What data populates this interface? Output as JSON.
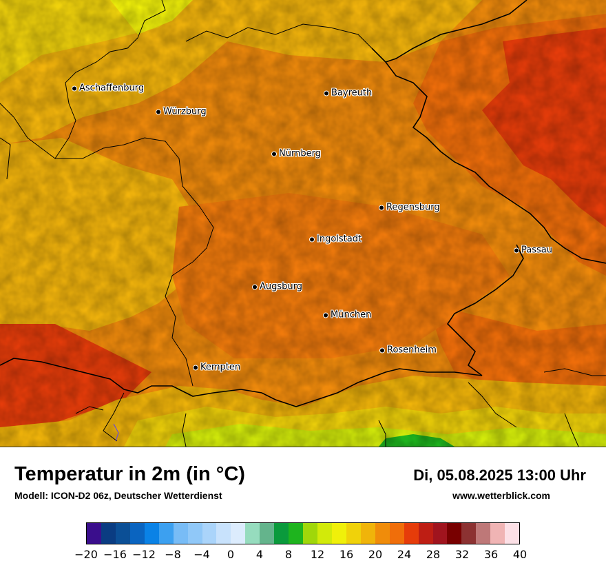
{
  "map": {
    "cities": [
      {
        "name": "Aschaffenburg"
      },
      {
        "name": "Würzburg"
      },
      {
        "name": "Bayreuth"
      },
      {
        "name": "Nürnberg"
      },
      {
        "name": "Regensburg"
      },
      {
        "name": "Ingolstadt"
      },
      {
        "name": "Passau"
      },
      {
        "name": "Augsburg"
      },
      {
        "name": "München"
      },
      {
        "name": "Rosenheim"
      },
      {
        "name": "Kempten"
      }
    ]
  },
  "header": {
    "title": "Temperatur in 2m (in °C)",
    "model": "Modell: ICON-D2 06z, Deutscher Wetterdienst",
    "datetime": "Di, 05.08.2025 13:00 Uhr",
    "site": "www.wetterblick.com"
  },
  "legend": {
    "colors": [
      "#3a0e8c",
      "#0a3c82",
      "#0b4f96",
      "#0a64c0",
      "#0a82e6",
      "#3ca0f0",
      "#78bcf6",
      "#90c8f8",
      "#aad4fa",
      "#c8e2fc",
      "#dcecfd",
      "#96dcbe",
      "#64b48c",
      "#0a9a3c",
      "#1eb41e",
      "#a0d70a",
      "#d2ea0a",
      "#f0f00a",
      "#f0d20a",
      "#f0b40a",
      "#f08c0a",
      "#f06e0a",
      "#e63c0a",
      "#be1e14",
      "#a0141e",
      "#780000",
      "#8c3232",
      "#be7878",
      "#f0b4b4",
      "#fce0e6"
    ],
    "ticks": [
      "−20",
      "−16",
      "−12",
      "−8",
      "−4",
      "0",
      "4",
      "8",
      "12",
      "16",
      "20",
      "24",
      "28",
      "32",
      "36",
      "40"
    ]
  }
}
